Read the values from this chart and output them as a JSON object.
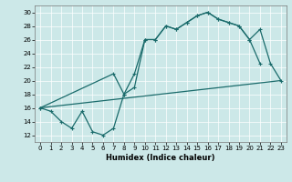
{
  "bg_color": "#cce8e8",
  "line_color": "#1a6b6b",
  "xlabel": "Humidex (Indice chaleur)",
  "xlim": [
    -0.5,
    23.5
  ],
  "ylim": [
    11.0,
    31.0
  ],
  "yticks": [
    12,
    14,
    16,
    18,
    20,
    22,
    24,
    26,
    28,
    30
  ],
  "xticks": [
    0,
    1,
    2,
    3,
    4,
    5,
    6,
    7,
    8,
    9,
    10,
    11,
    12,
    13,
    14,
    15,
    16,
    17,
    18,
    19,
    20,
    21,
    22,
    23
  ],
  "curve1_x": [
    0,
    1,
    2,
    3,
    4,
    5,
    6,
    7,
    8,
    9,
    10,
    11,
    12,
    13,
    14,
    15,
    16,
    17,
    18,
    19,
    20,
    21
  ],
  "curve1_y": [
    16,
    15.5,
    14,
    13,
    15.5,
    12.5,
    12,
    13,
    18,
    21,
    26,
    26,
    28,
    27.5,
    28.5,
    29.5,
    30,
    29,
    28.5,
    28,
    26,
    22.5
  ],
  "curve2_x": [
    0,
    7,
    8,
    9,
    10,
    11,
    12,
    13,
    14,
    15,
    16,
    17,
    18,
    19,
    20,
    21,
    22,
    23
  ],
  "curve2_y": [
    16,
    21,
    18,
    19,
    26,
    26,
    28,
    27.5,
    28.5,
    29.5,
    30,
    29,
    28.5,
    28,
    26,
    27.5,
    22.5,
    20
  ],
  "line3_x": [
    0,
    23
  ],
  "line3_y": [
    16,
    20
  ]
}
